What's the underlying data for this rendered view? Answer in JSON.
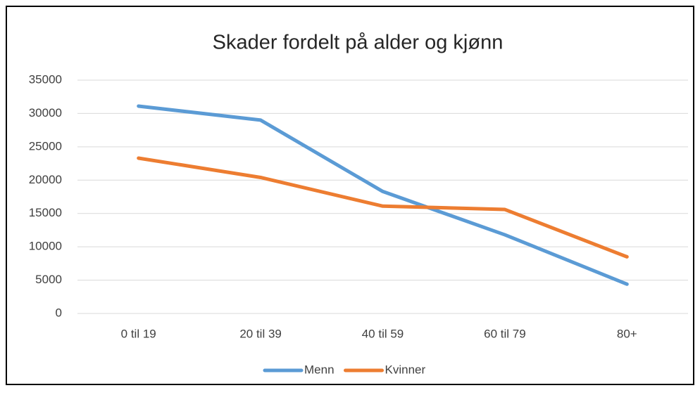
{
  "chart_data": {
    "type": "line",
    "title": "Skader fordelt på alder og kjønn",
    "categories": [
      "0 til 19",
      "20 til 39",
      "40 til 59",
      "60 til 79",
      "80+"
    ],
    "series": [
      {
        "name": "Menn",
        "color": "#5b9bd5",
        "values": [
          31100,
          29000,
          18300,
          11800,
          4400
        ]
      },
      {
        "name": "Kvinner",
        "color": "#ed7d31",
        "values": [
          23300,
          20400,
          16100,
          15600,
          8500
        ]
      }
    ],
    "ylim": [
      0,
      35000
    ],
    "yticks": [
      0,
      5000,
      10000,
      15000,
      20000,
      25000,
      30000,
      35000
    ],
    "grid": true,
    "legend": "bottom"
  }
}
